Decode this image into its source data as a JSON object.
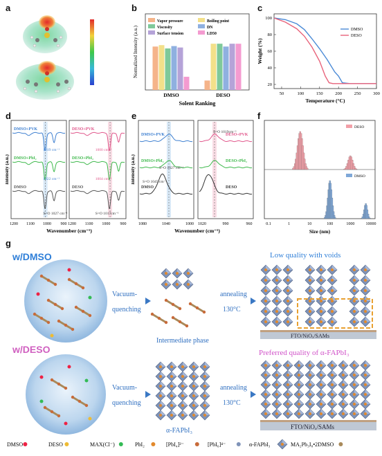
{
  "panels": {
    "a": "a",
    "b": "b",
    "c": "c",
    "d": "d",
    "e": "e",
    "f": "f",
    "g": "g"
  },
  "chart_b": {
    "type": "bar",
    "ylabel": "Normalized Intensity (a.u.)",
    "xlabel": "Solent Ranking",
    "categories": [
      "DMSO",
      "DESO"
    ],
    "legend": [
      "Vapor pressure",
      "Boiling point",
      "Viscosity",
      "DN",
      "Surface tension",
      "LD50"
    ],
    "colors": [
      "#f5b48a",
      "#f3e08a",
      "#7fc99a",
      "#8fb0e0",
      "#b5a3d8",
      "#f49bd0"
    ],
    "series_values": {
      "DMSO": [
        0.92,
        0.95,
        0.88,
        0.93,
        0.9,
        0.28
      ],
      "DESO": [
        0.2,
        0.98,
        0.98,
        0.92,
        0.98,
        0.98
      ]
    },
    "ylim": [
      0,
      1.1
    ]
  },
  "chart_c": {
    "type": "line",
    "xlabel": "Temperature (°C)",
    "ylabel": "Weight (%)",
    "xticks": [
      50,
      100,
      150,
      200,
      250,
      300
    ],
    "yticks": [
      20,
      40,
      60,
      80,
      100
    ],
    "xlim": [
      30,
      300
    ],
    "ylim": [
      15,
      105
    ],
    "series": [
      {
        "name": "DMSO",
        "color": "#4a8ad6",
        "x": [
          30,
          60,
          90,
          110,
          130,
          150,
          170,
          190,
          200,
          210,
          230,
          300
        ],
        "y": [
          100,
          98,
          93,
          86,
          75,
          63,
          50,
          35,
          30,
          22,
          21,
          21
        ]
      },
      {
        "name": "DESO",
        "color": "#e8627a",
        "x": [
          30,
          60,
          90,
          110,
          130,
          150,
          165,
          175,
          185,
          200,
          300
        ],
        "y": [
          100,
          95,
          87,
          78,
          65,
          48,
          30,
          22,
          21,
          21,
          21
        ]
      }
    ]
  },
  "chart_d": {
    "xlabel": "Wavenumber (cm⁻¹)",
    "ylabel": "Intensity (a.u.)",
    "left_ticks": [
      "1200",
      "1100",
      "1000",
      "900"
    ],
    "right_ticks": [
      "1200",
      "1100",
      "1000",
      "900"
    ],
    "left_curves": [
      {
        "name": "DMSO+PVK",
        "color": "#3d7fd0"
      },
      {
        "name": "DMSO+PbI₂",
        "color": "#3cb84a"
      },
      {
        "name": "DMSO",
        "color": "#555555"
      }
    ],
    "right_curves": [
      {
        "name": "DESO+PVK",
        "color": "#e0558a"
      },
      {
        "name": "DESO+PbI₂",
        "color": "#3cb84a"
      },
      {
        "name": "DESO",
        "color": "#555555"
      }
    ],
    "ann_left": [
      "1019 cm⁻¹",
      "1022 cm⁻¹",
      "S=O 1027 cm⁻¹"
    ],
    "ann_right": [
      "1000 cm⁻¹",
      "1004 cm⁻¹",
      "S=O 1017cm⁻¹"
    ]
  },
  "chart_e": {
    "xlabel": "Wavenumber (cm⁻¹)",
    "ylabel": "Intensity (a.u.)",
    "left_ticks": [
      "1080",
      "1040",
      "1000"
    ],
    "right_ticks": [
      "1020",
      "990",
      "960"
    ],
    "left_curves": [
      {
        "name": "DMSO+PVK",
        "color": "#3d7fd0"
      },
      {
        "name": "DMSO+PbI₂",
        "color": "#3cb84a"
      },
      {
        "name": "DMSO",
        "color": "#333333"
      }
    ],
    "right_curves": [
      {
        "name": "DESO+PVK",
        "color": "#e0558a"
      },
      {
        "name": "DESO+PbI₂",
        "color": "#3cb84a"
      },
      {
        "name": "DESO",
        "color": "#333333"
      }
    ],
    "ann_left": [
      "S=O 1027 cm⁻¹",
      "S=O 1045 cm⁻¹"
    ],
    "ann_right": [
      "S=O 1019cm⁻¹"
    ]
  },
  "chart_f": {
    "xlabel": "Size (nm)",
    "xticks": [
      "0.1",
      "1",
      "10",
      "100",
      "1000",
      "10000"
    ],
    "top": {
      "name": "DESO",
      "color": "#f2a0a8"
    },
    "bottom": {
      "name": "DMSO",
      "color": "#7fa8d8"
    }
  },
  "scheme": {
    "dmso_title": "w/DMSO",
    "deso_title": "w/DESO",
    "vq1": "Vacuum-",
    "vq2": "quenching",
    "ann1": "annealing",
    "temp": "130°C",
    "intermediate": "Intermediate phase",
    "low_quality": "Low quality with voids",
    "preferred": "Preferred quality of α-FAPbI₃",
    "substrate": "FTO/NiOₓ/SAMs",
    "fapbi": "α-FAPbI₃",
    "legend": [
      "DMSO",
      "DESO",
      "MAX(Cl⁻)",
      "PbI₂",
      "[PbI₄]²⁻",
      "[PbI₆]⁴⁻",
      "α-FAPbI₃",
      "MA₂Pb₃I₈•2DMSO"
    ]
  }
}
